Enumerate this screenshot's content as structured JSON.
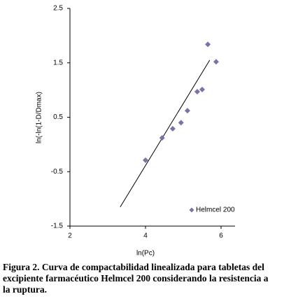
{
  "chart_data": {
    "type": "scatter",
    "x_label": "ln(Pc)",
    "y_label": "ln(-ln(1-D/Dmax)",
    "series": [
      {
        "name": "Helmcel 200",
        "color": "#8070a8",
        "x": [
          4.0,
          4.44,
          4.72,
          4.94,
          5.11,
          5.37,
          5.5,
          5.65,
          5.87
        ],
        "values": [
          -0.29,
          0.12,
          0.29,
          0.4,
          0.62,
          0.97,
          1.01,
          1.84,
          1.52
        ]
      }
    ],
    "trendline": {
      "x": [
        3.33,
        5.7
      ],
      "y": [
        -1.15,
        1.55
      ]
    },
    "xlim": [
      2,
      6
    ],
    "xticks": [
      2,
      4,
      6
    ],
    "ylim": [
      -1.5,
      2.5
    ],
    "yticks": [
      -1.5,
      -0.5,
      0.5,
      1.5,
      2.5
    ],
    "legend": "lower right"
  },
  "caption": [
    "Figura 2.  Curva de compactabilidad linealizada para tabletas del",
    "excipiente farmacéutico Helmcel 200 considerando la resistencia a",
    "la ruptura."
  ]
}
